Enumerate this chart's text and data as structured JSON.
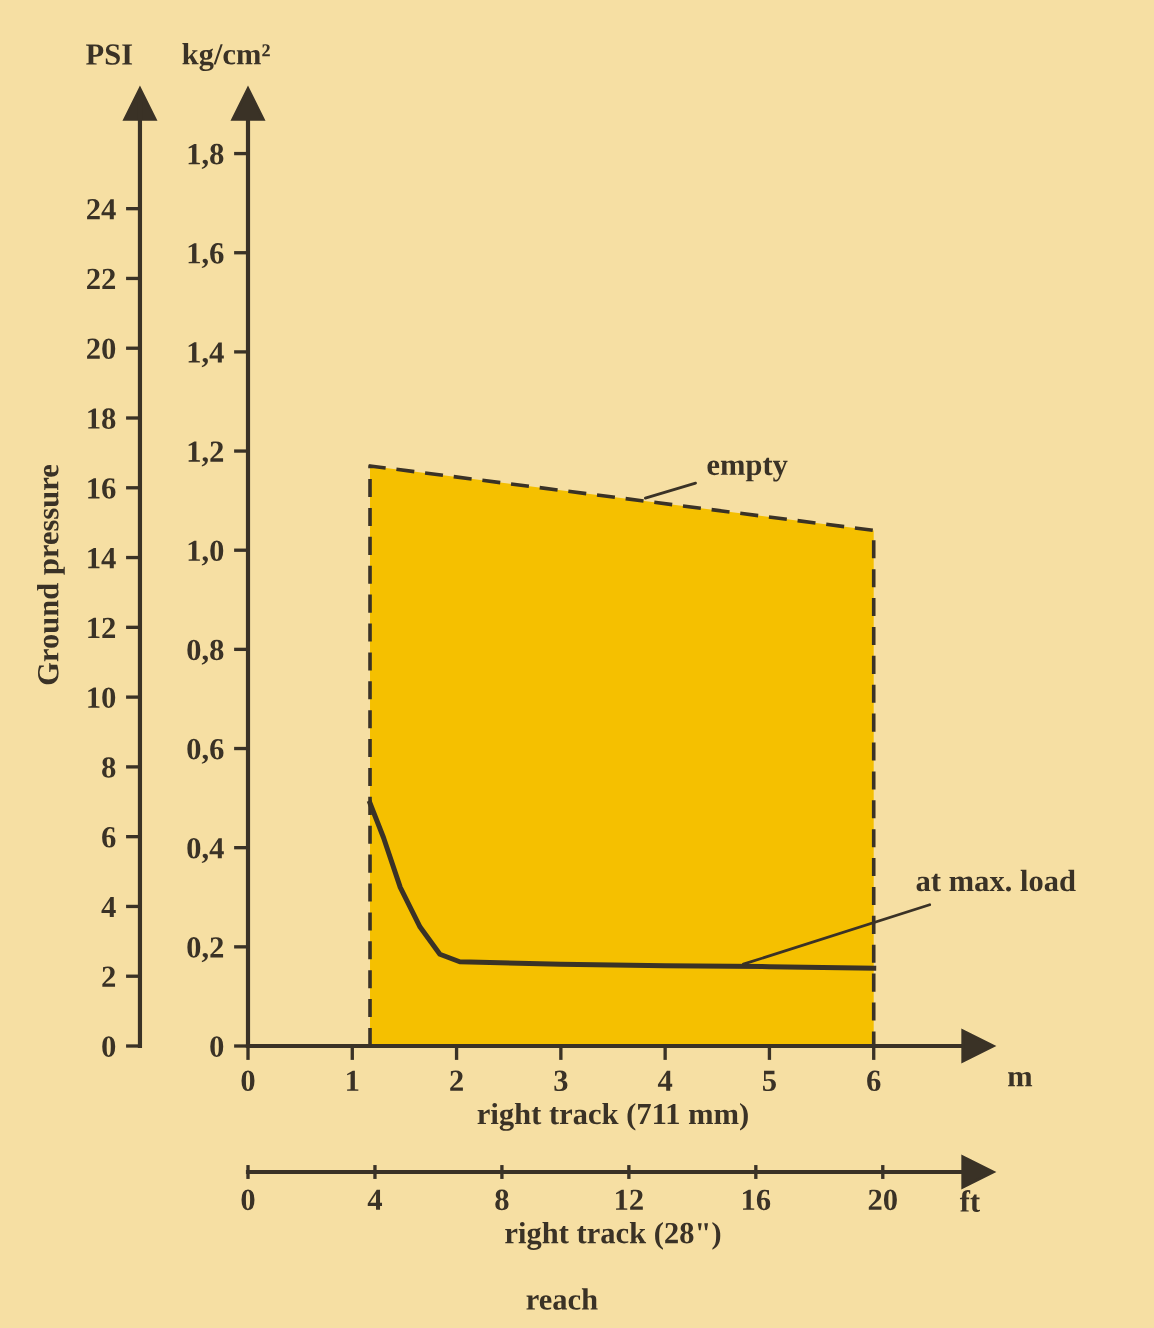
{
  "chart_data": {
    "type": "area",
    "xlabel": "right track (711 mm)",
    "x2label": "right track (28\")",
    "ylabel": "kg/cm²",
    "y2label": "PSI",
    "annotations": [
      "Ground pressure",
      "m",
      "ft",
      "reach",
      {
        "text": "empty",
        "x": 3.81,
        "y": 1.105
      },
      {
        "text": "at max. load",
        "x": 4.75,
        "y": 0.165
      }
    ],
    "series": [
      {
        "color": "#f5c000",
        "line_style": "dashed",
        "x": [
          1.17,
          6
        ],
        "values": [
          1.17,
          1.04
        ]
      },
      {
        "type": "line",
        "color": "#3a3226",
        "line_style": "solid",
        "x": [
          1.17,
          1.3,
          1.46,
          1.65,
          1.84,
          2.03,
          3,
          4,
          5,
          6
        ],
        "values": [
          0.49,
          0.42,
          0.32,
          0.24,
          0.185,
          0.17,
          0.165,
          0.162,
          0.16,
          0.157
        ]
      }
    ],
    "xlim": [
      0,
      7
    ],
    "xticks": [
      0,
      1,
      2,
      3,
      4,
      5,
      6
    ],
    "x2lim": [
      0,
      23
    ],
    "x2ticks": [
      0,
      4,
      8,
      12,
      16,
      20
    ],
    "ylim": [
      0,
      1.9
    ],
    "yticks": [
      0,
      {
        "value": 0.2,
        "label": "0,2"
      },
      {
        "value": 0.4,
        "label": "0,4"
      },
      {
        "value": 0.6,
        "label": "0,6"
      },
      {
        "value": 0.8,
        "label": "0,8"
      },
      {
        "value": 1.0,
        "label": "1,0"
      },
      {
        "value": 1.2,
        "label": "1,2"
      },
      {
        "value": 1.4,
        "label": "1,4"
      },
      {
        "value": 1.6,
        "label": "1,6"
      },
      {
        "value": 1.8,
        "label": "1,8"
      }
    ],
    "y2lim": [
      0,
      27
    ],
    "y2ticks": [
      0,
      2,
      4,
      6,
      8,
      10,
      12,
      14,
      16,
      18,
      20,
      22,
      24
    ],
    "grid": false
  }
}
